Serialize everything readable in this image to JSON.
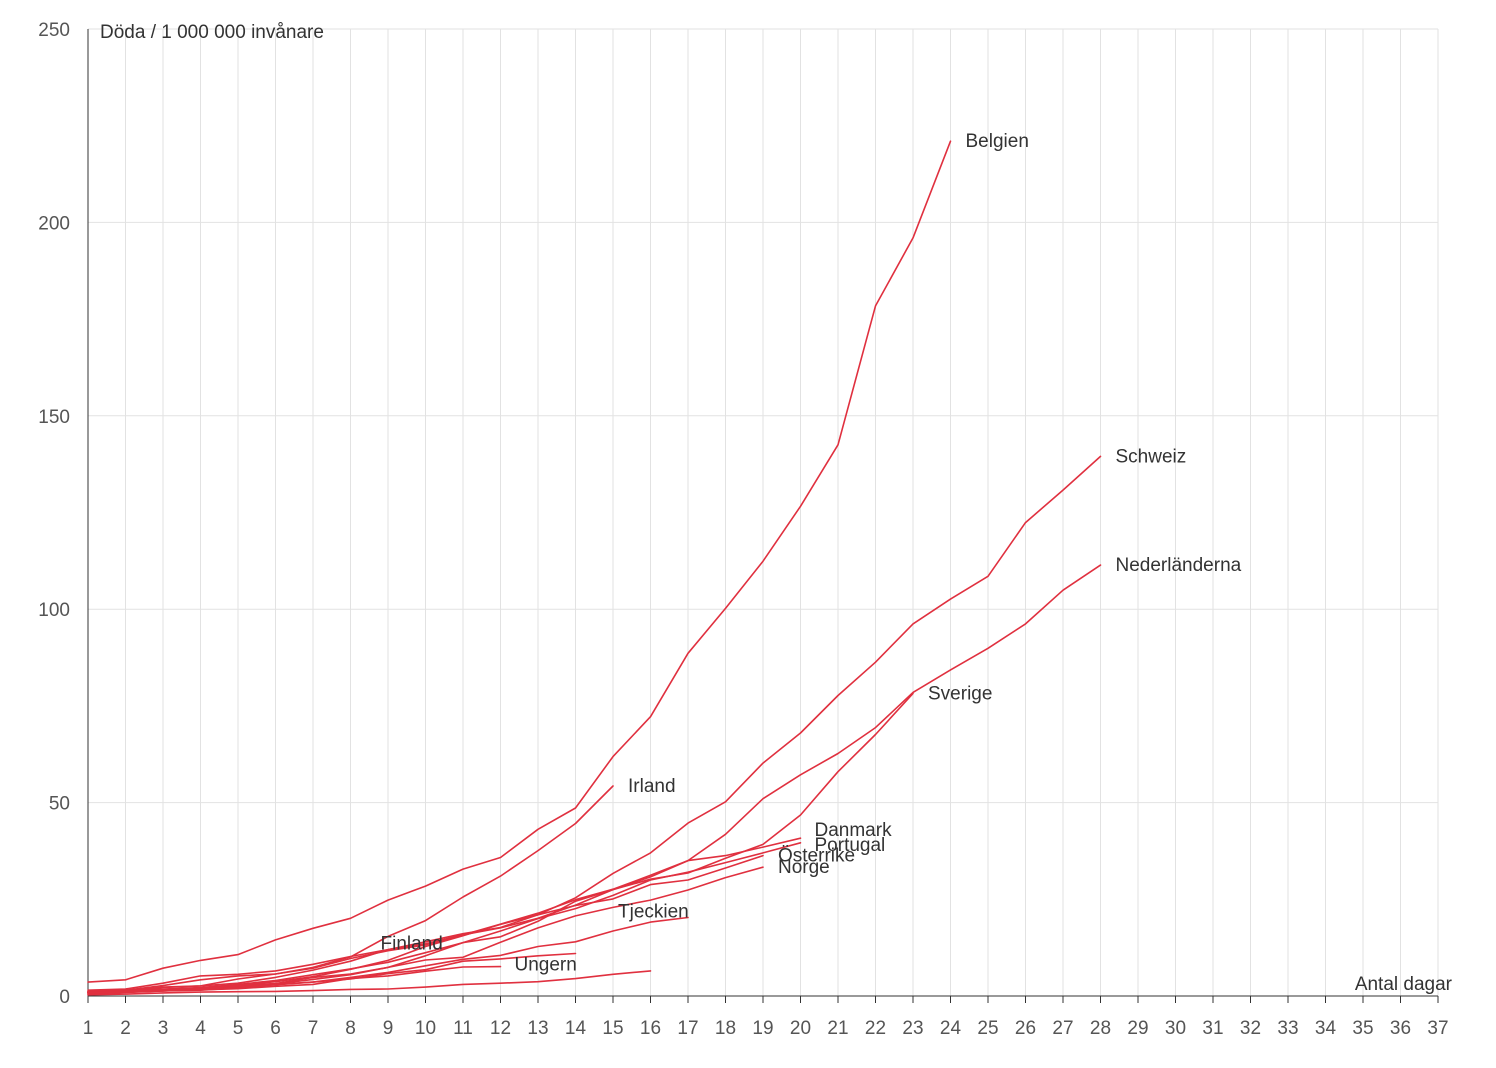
{
  "chart_data": {
    "type": "line",
    "ylabel": "Döda / 1 000 000 invånare",
    "xlabel": "Antal dagar",
    "xlim": [
      1,
      37
    ],
    "ylim": [
      0,
      250
    ],
    "x_ticks": [
      1,
      2,
      3,
      4,
      5,
      6,
      7,
      8,
      9,
      10,
      11,
      12,
      13,
      14,
      15,
      16,
      17,
      18,
      19,
      20,
      21,
      22,
      23,
      24,
      25,
      26,
      27,
      28,
      29,
      30,
      31,
      32,
      33,
      34,
      35,
      36,
      37
    ],
    "y_ticks": [
      0,
      50,
      100,
      150,
      200,
      250
    ],
    "grid": true,
    "line_color": "#e0303f",
    "series": [
      {
        "name": "Belgien",
        "values": [
          3.6,
          4.2,
          7.2,
          9.2,
          10.7,
          14.5,
          17.5,
          20.1,
          24.8,
          28.4,
          32.8,
          35.8,
          43.1,
          48.6,
          61.9,
          72.2,
          88.6,
          100.2,
          112.4,
          126.6,
          142.5,
          178.4,
          196.0,
          221.0
        ]
      },
      {
        "name": "Nederländerna",
        "values": [
          1.2,
          1.5,
          2.7,
          4.2,
          5.2,
          5.7,
          7.2,
          9.7,
          11.7,
          13.2,
          15.8,
          17.6,
          20.1,
          23.5,
          27.5,
          30.8,
          35.0,
          41.8,
          51.0,
          57.2,
          62.7,
          69.4,
          78.5,
          84.3,
          89.9,
          96.2,
          104.9,
          111.4
        ]
      },
      {
        "name": "Schweiz",
        "values": [
          1.5,
          1.8,
          3.3,
          5.2,
          5.6,
          6.5,
          8.2,
          10.2,
          12.0,
          14.0,
          16.1,
          17.7,
          21.0,
          25.4,
          31.7,
          37.0,
          44.7,
          50.2,
          60.2,
          68.0,
          77.7,
          86.3,
          96.2,
          102.6,
          108.5,
          122.4,
          130.8,
          139.5
        ]
      },
      {
        "name": "Sverige",
        "values": [
          0.7,
          1.0,
          1.4,
          2.0,
          2.8,
          3.2,
          4.8,
          5.7,
          7.4,
          10.4,
          13.8,
          15.3,
          19.3,
          24.5,
          27.5,
          30.2,
          31.8,
          35.6,
          39.2,
          46.8,
          58.0,
          67.6,
          78.2
        ]
      },
      {
        "name": "Irland",
        "values": [
          0.8,
          1.2,
          2.2,
          2.6,
          4.4,
          5.7,
          7.4,
          10.1,
          15.4,
          19.5,
          25.6,
          31.0,
          37.6,
          44.6,
          54.3
        ]
      },
      {
        "name": "Danmark",
        "values": [
          1.1,
          1.3,
          2.3,
          2.6,
          3.3,
          4.8,
          6.7,
          9.0,
          12.0,
          13.5,
          15.8,
          18.6,
          21.4,
          24.9,
          27.6,
          31.2,
          35.0,
          36.3,
          38.5,
          40.8
        ]
      },
      {
        "name": "Portugal",
        "values": [
          1.2,
          1.4,
          1.8,
          2.2,
          3.0,
          4.0,
          5.5,
          7.0,
          8.7,
          11.2,
          13.8,
          16.8,
          20.0,
          22.6,
          26.0,
          30.0,
          32.0,
          34.5,
          37.0,
          39.6
        ]
      },
      {
        "name": "Österrike",
        "values": [
          0.9,
          1.0,
          1.3,
          1.8,
          2.8,
          3.7,
          5.0,
          6.9,
          9.2,
          12.8,
          15.6,
          18.5,
          21.0,
          23.4,
          25.1,
          28.8,
          30.0,
          33.1,
          36.3
        ]
      },
      {
        "name": "Norge",
        "values": [
          0.9,
          1.3,
          1.5,
          2.0,
          2.5,
          3.1,
          4.3,
          5.5,
          7.4,
          9.3,
          10.0,
          13.9,
          17.6,
          20.7,
          22.9,
          24.8,
          27.4,
          30.6,
          33.3
        ]
      },
      {
        "name": "Tjeckien",
        "values": [
          0.5,
          0.9,
          1.3,
          1.7,
          2.3,
          3.0,
          3.6,
          4.8,
          6.1,
          7.8,
          9.5,
          10.5,
          12.8,
          14.0,
          16.8,
          19.1,
          20.3
        ]
      },
      {
        "name": "Finland",
        "values": [
          0.9,
          1.1,
          1.3,
          1.5,
          2.1,
          2.9,
          3.6,
          4.4,
          5.8,
          6.8,
          9.0,
          9.6,
          10.4,
          11.0
        ]
      },
      {
        "name": "Ungern",
        "values": [
          0.9,
          1.0,
          1.5,
          1.6,
          1.9,
          2.5,
          3.0,
          4.5,
          5.2,
          6.4,
          7.5,
          7.6
        ]
      },
      {
        "name": "",
        "values": [
          0.3,
          0.5,
          0.8,
          1.0,
          1.1,
          1.2,
          1.4,
          1.7,
          1.8,
          2.3,
          3.0,
          3.3,
          3.7,
          4.5,
          5.6,
          6.5
        ]
      }
    ],
    "label_order": [
      "Belgien",
      "Nederländerna",
      "Schweiz",
      "Sverige",
      "Irland",
      "Danmark",
      "Portugal",
      "Österrike",
      "Norge",
      "Tjeckien",
      "Finland",
      "Ungern"
    ]
  }
}
